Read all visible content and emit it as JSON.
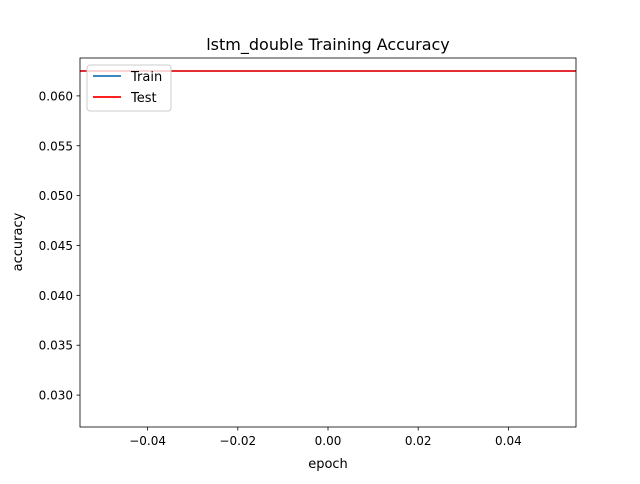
{
  "chart_data": {
    "type": "line",
    "title": "lstm_double Training Accuracy",
    "xlabel": "epoch",
    "ylabel": "accuracy",
    "xlim": [
      -0.055,
      0.055
    ],
    "ylim": [
      0.0268,
      0.0638
    ],
    "xticks": [
      -0.04,
      -0.02,
      0.0,
      0.02,
      0.04
    ],
    "xtick_labels": [
      "−0.04",
      "−0.02",
      "0.00",
      "0.02",
      "0.04"
    ],
    "yticks": [
      0.03,
      0.035,
      0.04,
      0.045,
      0.05,
      0.055,
      0.06
    ],
    "ytick_labels": [
      "0.030",
      "0.035",
      "0.040",
      "0.045",
      "0.050",
      "0.055",
      "0.060"
    ],
    "grid": false,
    "legend_position": "top-left",
    "series": [
      {
        "name": "Train",
        "color": "#1f77b4",
        "x": [
          0
        ],
        "y": [
          0.0625
        ]
      },
      {
        "name": "Test",
        "color": "#ff0000",
        "x": [
          0
        ],
        "y": [
          0.0625
        ]
      }
    ]
  }
}
